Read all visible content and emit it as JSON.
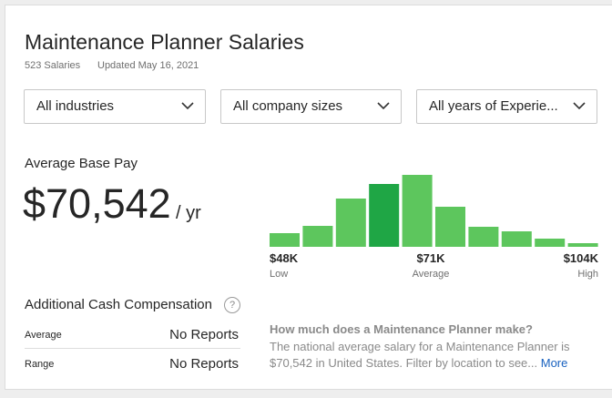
{
  "header": {
    "title": "Maintenance Planner Salaries",
    "count": "523 Salaries",
    "updated": "Updated May 16, 2021"
  },
  "filters": [
    "All industries",
    "All company sizes",
    "All years of Experie..."
  ],
  "base_pay": {
    "label": "Average Base Pay",
    "amount": "$70,542",
    "unit": "/ yr"
  },
  "histogram": {
    "values": [
      15,
      23,
      53,
      69,
      79,
      44,
      22,
      17,
      9,
      4
    ],
    "colors": [
      "#5dc65d",
      "#5dc65d",
      "#5dc65d",
      "#1fa645",
      "#5dc65d",
      "#5dc65d",
      "#5dc65d",
      "#5dc65d",
      "#5dc65d",
      "#5dc65d"
    ],
    "low": {
      "value": "$48K",
      "label": "Low"
    },
    "average": {
      "value": "$71K",
      "label": "Average"
    },
    "high": {
      "value": "$104K",
      "label": "High"
    }
  },
  "additional_cash": {
    "title": "Additional Cash Compensation",
    "help": "?",
    "rows": [
      [
        "Average",
        "No Reports"
      ],
      [
        "Range",
        "No Reports"
      ]
    ]
  },
  "faq": {
    "question": "How much does a Maintenance Planner make?",
    "answer": "The national average salary for a Maintenance Planner is $70,542 in United States. Filter by location to see...",
    "link": "More"
  }
}
